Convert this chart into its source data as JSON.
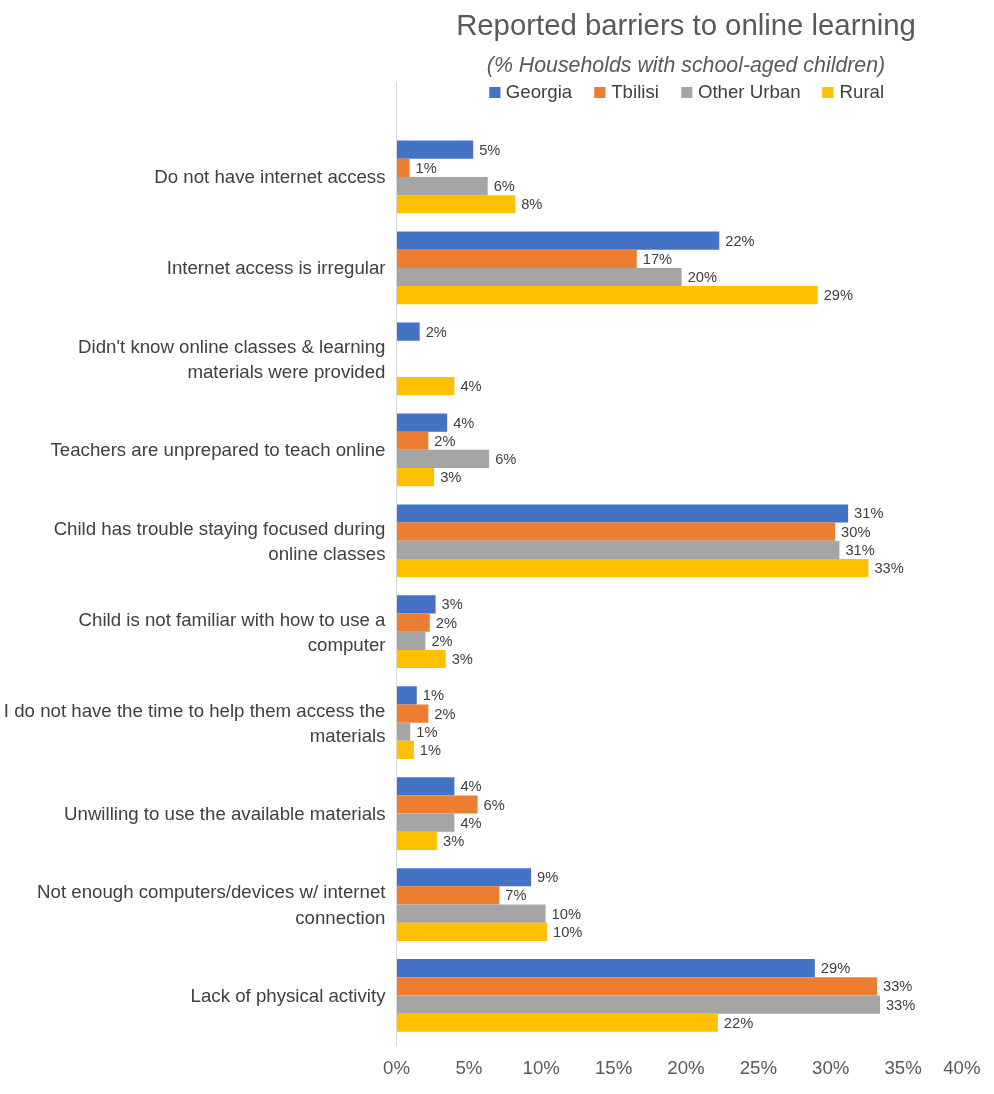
{
  "chart_data": {
    "type": "bar",
    "orientation": "horizontal",
    "title": "Reported barriers to online learning",
    "subtitle": "(% Households with school-aged children)",
    "categories": [
      "Do not have internet access",
      "Internet access is irregular",
      "Didn't know online classes & learning materials were provided",
      "Teachers are unprepared to teach online",
      "Child has trouble staying focused during online classes",
      "Child is not familiar with how to use a computer",
      "I do not have the time to help them access the materials",
      "Unwilling to use the available materials",
      "Not enough computers/devices w/ internet connection",
      "Lack of physical activity"
    ],
    "series": [
      {
        "name": "Georgia",
        "color": "#4472c4",
        "values": [
          5.3,
          22.3,
          1.6,
          3.5,
          31.2,
          2.7,
          1.4,
          4.0,
          9.3,
          28.9
        ],
        "value_labels": [
          "5%",
          "22%",
          "2%",
          "4%",
          "31%",
          "3%",
          "1%",
          "4%",
          "9%",
          "29%"
        ]
      },
      {
        "name": "Tbilisi",
        "color": "#ed7d31",
        "values": [
          0.9,
          16.6,
          null,
          2.2,
          30.3,
          2.3,
          2.2,
          5.6,
          7.1,
          33.2
        ],
        "value_labels": [
          "1%",
          "17%",
          null,
          "2%",
          "30%",
          "2%",
          "2%",
          "6%",
          "7%",
          "33%"
        ]
      },
      {
        "name": "Other Urban",
        "color": "#a5a5a5",
        "values": [
          6.3,
          19.7,
          null,
          6.4,
          30.6,
          2.0,
          0.95,
          4.0,
          10.3,
          33.4
        ],
        "value_labels": [
          "6%",
          "20%",
          null,
          "6%",
          "31%",
          "2%",
          "1%",
          "4%",
          "10%",
          "33%"
        ]
      },
      {
        "name": "Rural",
        "color": "#ffc000",
        "values": [
          8.2,
          29.1,
          4.0,
          2.6,
          32.6,
          3.4,
          1.2,
          2.8,
          10.4,
          22.2
        ],
        "value_labels": [
          "8%",
          "29%",
          "4%",
          "3%",
          "33%",
          "3%",
          "1%",
          "3%",
          "10%",
          "22%"
        ]
      }
    ],
    "xlim": [
      0,
      40
    ],
    "xticks": [
      {
        "value": 0,
        "label": "0%"
      },
      {
        "value": 5,
        "label": "5%"
      },
      {
        "value": 10,
        "label": "10%"
      },
      {
        "value": 15,
        "label": "15%"
      },
      {
        "value": 20,
        "label": "20%"
      },
      {
        "value": 25,
        "label": "25%"
      },
      {
        "value": 30,
        "label": "30%"
      },
      {
        "value": 35,
        "label": "35%"
      },
      {
        "value": 40,
        "label": "40%"
      }
    ],
    "legend": "top"
  }
}
